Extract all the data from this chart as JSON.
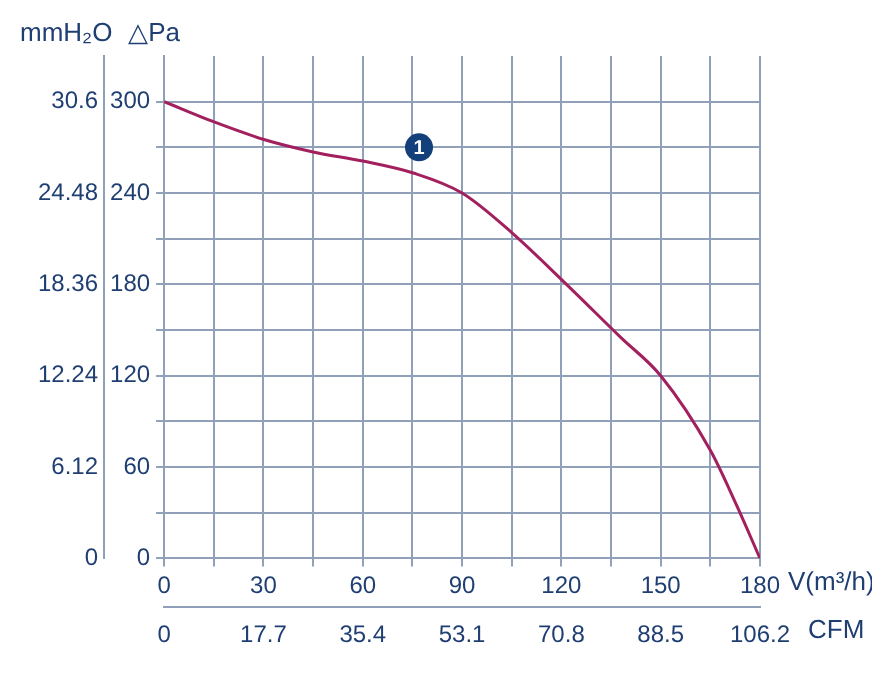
{
  "chart_data": {
    "type": "line",
    "xlabel": "V(m³/h)",
    "ylabel": "△Pa",
    "y2label": "mmH₂O",
    "x2label": "CFM",
    "x": [
      0,
      14.7,
      30.4,
      45,
      60,
      75.5,
      90,
      105,
      120.6,
      138,
      150,
      165,
      172.5,
      180
    ],
    "series": [
      {
        "color": "#a3205e",
        "values": [
          300,
          287,
          275,
          267,
          261,
          253,
          240,
          214,
          182,
          145,
          120,
          71,
          37,
          0
        ]
      }
    ],
    "xlim": [
      0,
      180
    ],
    "xticks": [
      0,
      {
        "value": 15,
        "label": null
      },
      30,
      {
        "value": 45,
        "label": null
      },
      60,
      {
        "value": 75,
        "label": null
      },
      90,
      {
        "value": 105,
        "label": null
      },
      120,
      {
        "value": 135,
        "label": null
      },
      150,
      {
        "value": 165,
        "label": null
      },
      180
    ],
    "ylim": [
      0,
      330
    ],
    "yticks": [
      0,
      {
        "value": 30,
        "label": null
      },
      60,
      {
        "value": 90,
        "label": null
      },
      120,
      {
        "value": 150,
        "label": null
      },
      180,
      {
        "value": 210,
        "label": null
      },
      240,
      {
        "value": 270,
        "label": null
      },
      300
    ],
    "y2lim": [
      0,
      33.66
    ],
    "y2ticks": [
      0,
      6.12,
      12.24,
      18.36,
      24.48,
      30.6
    ],
    "x2lim": [
      0,
      106.2
    ],
    "x2ticks": [
      0,
      17.7,
      35.4,
      53.1,
      70.8,
      88.5,
      106.2
    ],
    "annotations": [
      {
        "text": "1",
        "x": 77,
        "y": 270
      }
    ],
    "grid": true,
    "legend": false,
    "marker": "none",
    "line_style": "solid"
  }
}
